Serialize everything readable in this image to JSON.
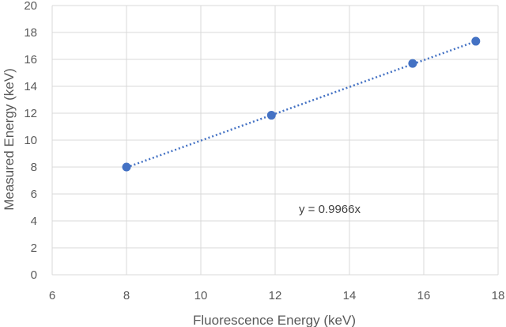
{
  "chart_data": {
    "type": "scatter",
    "title": "",
    "xlabel": "Fluorescence Energy (keV)",
    "ylabel": "Measured Energy (keV)",
    "xlim": [
      6,
      18
    ],
    "ylim": [
      0,
      20
    ],
    "xticks": [
      6,
      8,
      10,
      12,
      14,
      16,
      18
    ],
    "yticks": [
      0,
      2,
      4,
      6,
      8,
      10,
      12,
      14,
      16,
      18,
      20
    ],
    "grid": true,
    "legend": "none",
    "series": [
      {
        "x": [
          8.0,
          11.9,
          15.7,
          17.4
        ],
        "y": [
          8.0,
          11.85,
          15.7,
          17.35
        ],
        "color": "#4472C4",
        "marker": "circle"
      }
    ],
    "trendline": {
      "type": "linear-through-origin",
      "slope": 0.9966,
      "x_range": [
        8.0,
        17.4
      ],
      "style": "dotted",
      "color": "#4472C4"
    },
    "annotation": {
      "text": "y = 0.9966x"
    }
  }
}
